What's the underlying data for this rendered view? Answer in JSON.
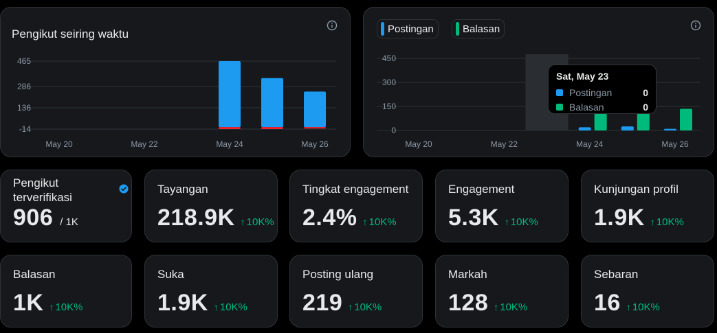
{
  "followers_chart": {
    "title": "Pengikut seiring waktu",
    "chart_data": {
      "type": "bar",
      "categories": [
        "May 20",
        "May 21",
        "May 22",
        "May 23",
        "May 24",
        "May 25",
        "May 26"
      ],
      "x_tick_labels": [
        "May 20",
        "May 22",
        "May 24",
        "May 26"
      ],
      "y_tick_labels": [
        "465",
        "286",
        "136",
        "-14"
      ],
      "ylim": [
        -14,
        465
      ],
      "series": [
        {
          "values": [
            0,
            0,
            0,
            0,
            465,
            345,
            250
          ],
          "color": "#1d9bf0"
        },
        {
          "values": [
            0,
            0,
            0,
            0,
            -14,
            -14,
            -10
          ],
          "color": "#f4212e"
        }
      ]
    }
  },
  "posts_chart": {
    "legend": [
      {
        "label": "Postingan",
        "color": "#1d9bf0"
      },
      {
        "label": "Balasan",
        "color": "#00ba7c"
      }
    ],
    "chart_data": {
      "type": "bar",
      "categories": [
        "May 20",
        "May 21",
        "May 22",
        "May 23",
        "May 24",
        "May 25",
        "May 26"
      ],
      "x_tick_labels": [
        "May 20",
        "May 22",
        "May 24",
        "May 26"
      ],
      "y_tick_labels": [
        "450",
        "300",
        "150",
        "0"
      ],
      "ylim": [
        0,
        450
      ],
      "highlighted_category": "May 23",
      "series": [
        {
          "name": "Postingan",
          "values": [
            0,
            0,
            0,
            0,
            20,
            25,
            10
          ],
          "color": "#1d9bf0"
        },
        {
          "name": "Balasan",
          "values": [
            0,
            0,
            0,
            0,
            120,
            130,
            135
          ],
          "color": "#00ba7c"
        }
      ]
    },
    "tooltip": {
      "title": "Sat, May 23",
      "rows": [
        {
          "label": "Postingan",
          "value": "0",
          "color": "#1d9bf0"
        },
        {
          "label": "Balasan",
          "value": "0",
          "color": "#00ba7c"
        }
      ]
    }
  },
  "verified_followers": {
    "label": "Pengikut terverifikasi",
    "value": "906",
    "total": "/ 1K"
  },
  "metrics": [
    {
      "label": "Tayangan",
      "value": "218.9K",
      "delta": "10K%"
    },
    {
      "label": "Tingkat engagement",
      "value": "2.4%",
      "delta": "10K%"
    },
    {
      "label": "Engagement",
      "value": "5.3K",
      "delta": "10K%"
    },
    {
      "label": "Kunjungan profil",
      "value": "1.9K",
      "delta": "10K%"
    },
    {
      "label": "Balasan",
      "value": "1K",
      "delta": "10K%"
    },
    {
      "label": "Suka",
      "value": "1.9K",
      "delta": "10K%"
    },
    {
      "label": "Posting ulang",
      "value": "219",
      "delta": "10K%"
    },
    {
      "label": "Markah",
      "value": "128",
      "delta": "10K%"
    },
    {
      "label": "Sebaran",
      "value": "16",
      "delta": "10K%"
    }
  ],
  "arrow": "↑"
}
